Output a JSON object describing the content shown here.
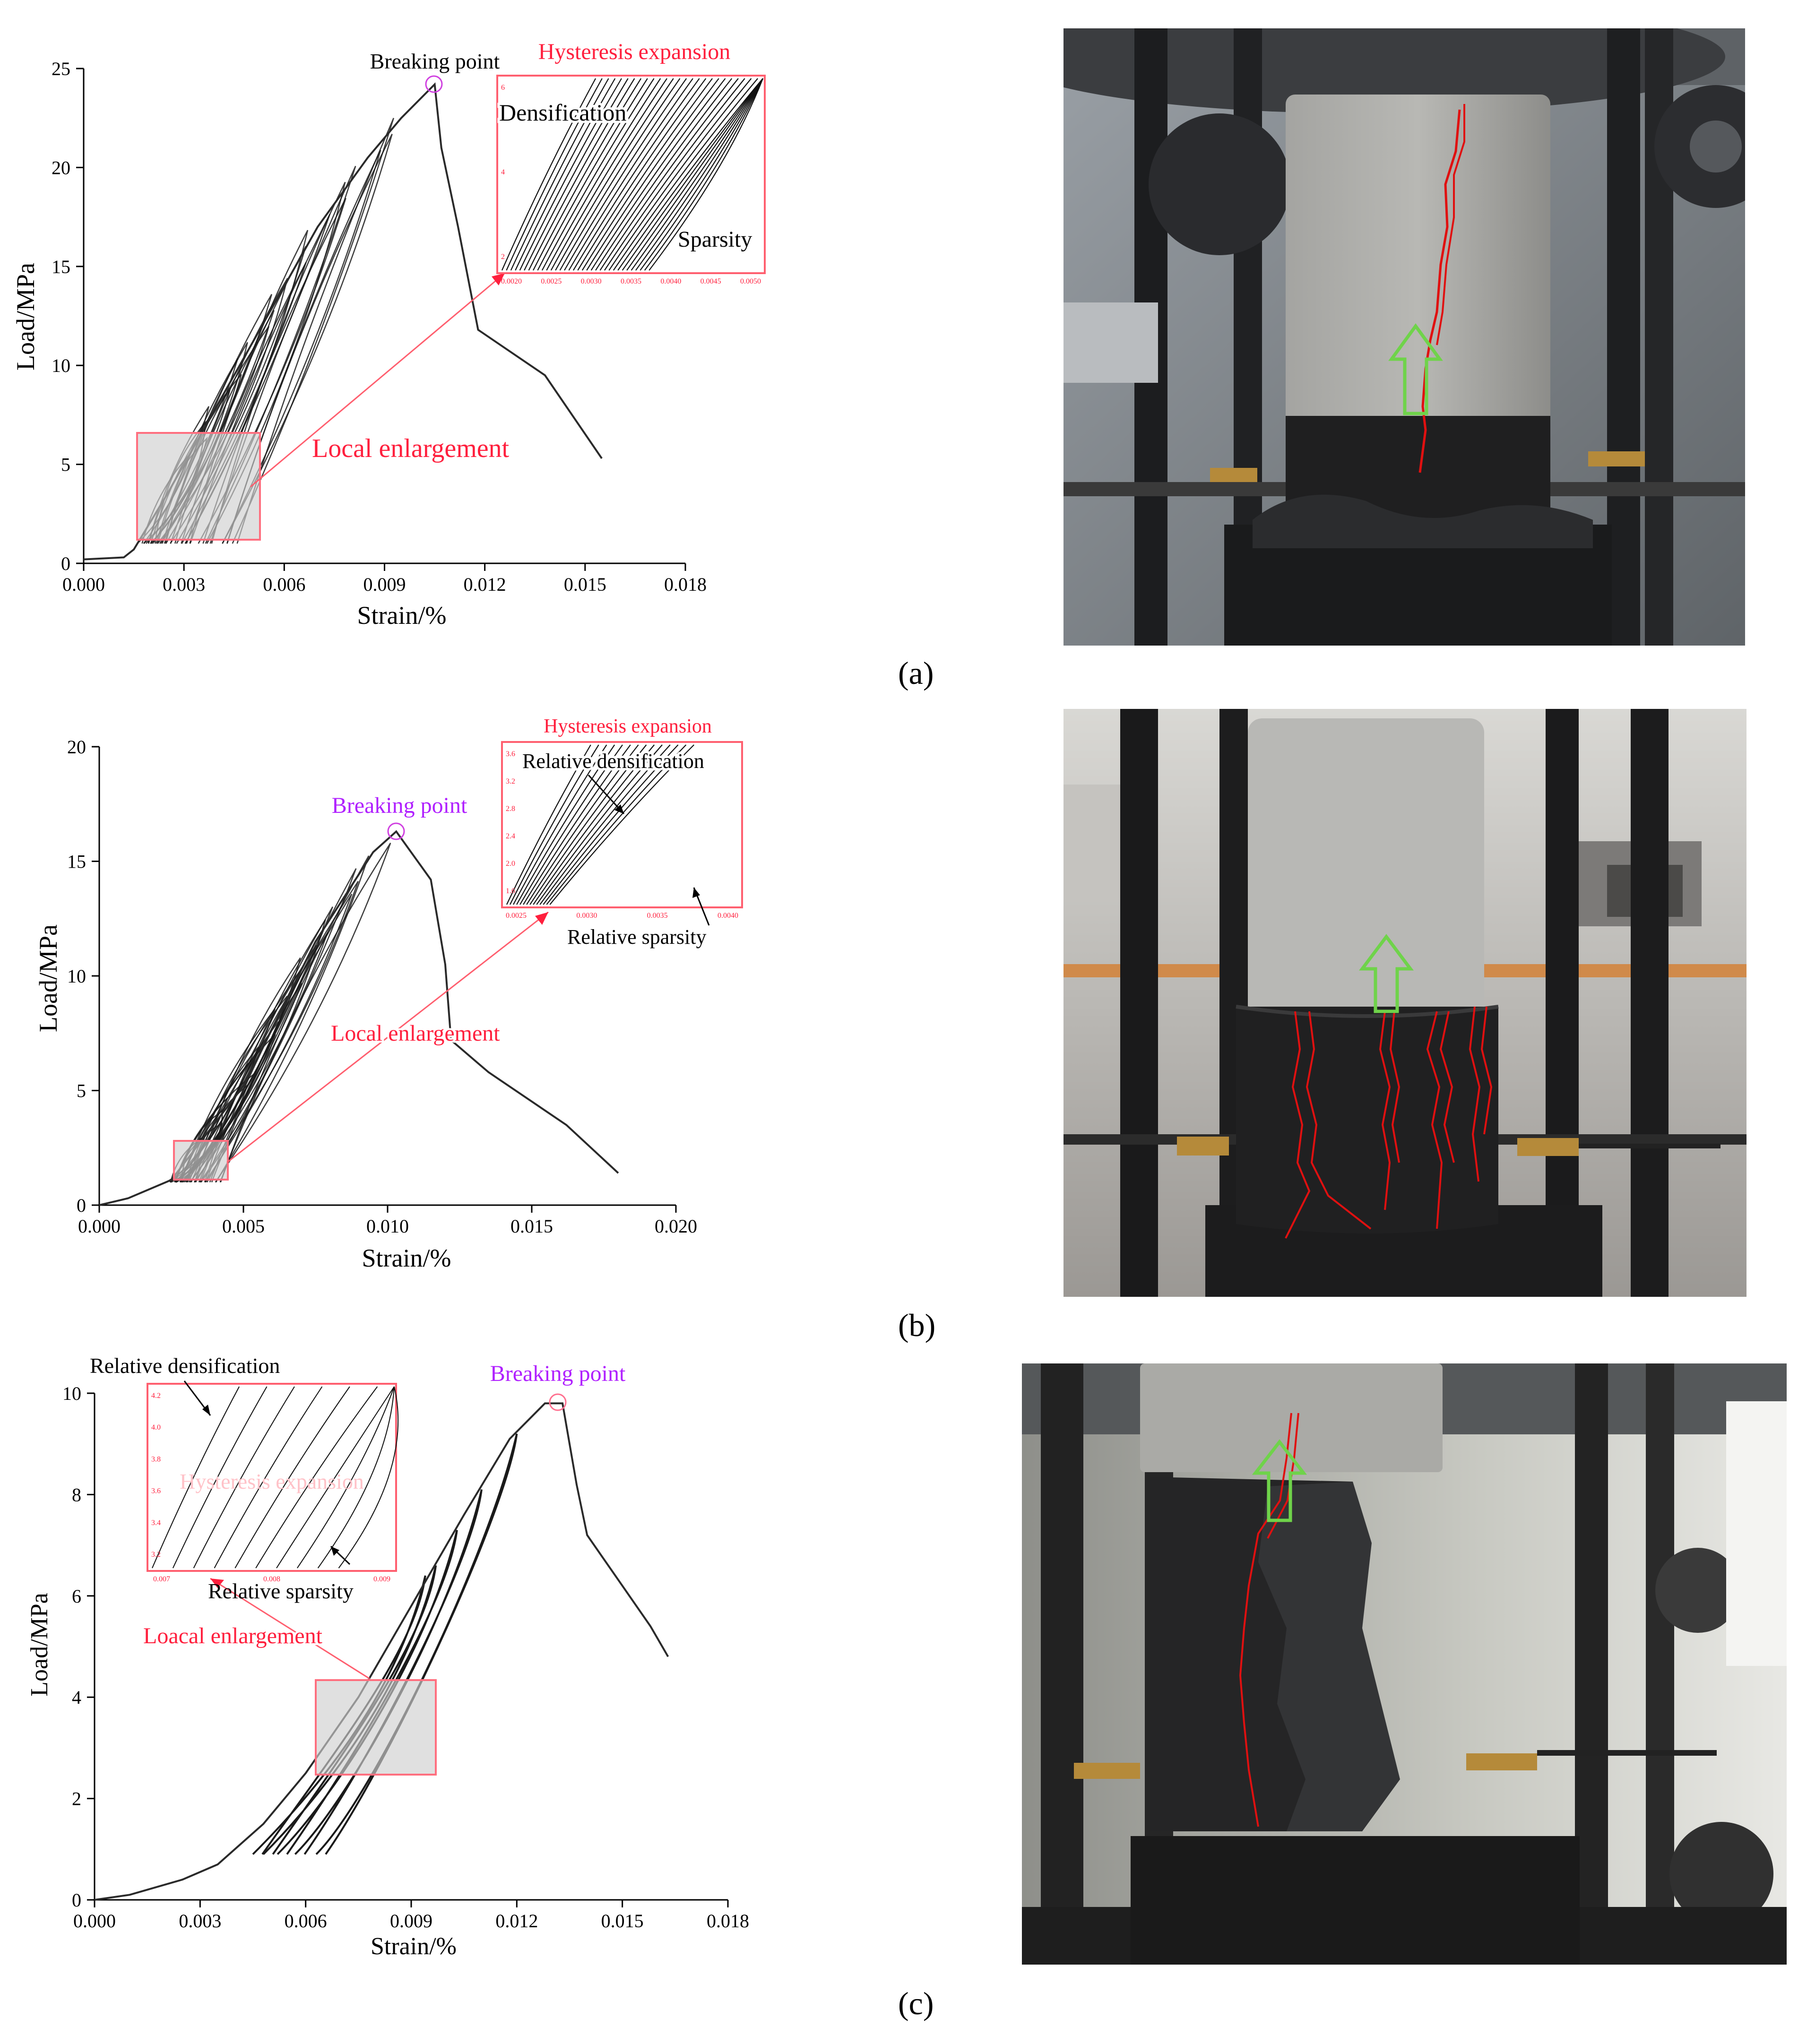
{
  "labels": {
    "a": "(a)",
    "b": "(b)",
    "c": "(c)"
  },
  "chart_data": [
    {
      "type": "line",
      "panel": "a",
      "xlabel": "Strain/%",
      "ylabel": "Load/MPa",
      "xlim": [
        0,
        0.018
      ],
      "ylim": [
        0,
        25
      ],
      "x_ticks": [
        "0.000",
        "0.003",
        "0.006",
        "0.009",
        "0.012",
        "0.015",
        "0.018"
      ],
      "y_ticks": [
        "0",
        "5",
        "10",
        "15",
        "20",
        "25"
      ],
      "annotations": {
        "breaking_point": "Breaking point",
        "local_enlargement": "Local enlargement",
        "inset_title": "Hysteresis expansion",
        "inset_note_1": "Densification",
        "inset_note_2": "Sparsity"
      },
      "inset_x_ticks": [
        "0.0020",
        "0.0025",
        "0.0030",
        "0.0035",
        "0.0040",
        "0.0045",
        "0.0050"
      ],
      "inset_y_ticks": [
        "2",
        "4",
        "6"
      ],
      "envelope": {
        "x": [
          0,
          0.0012,
          0.0015,
          0.0025,
          0.005,
          0.007,
          0.0085,
          0.0095,
          0.0105,
          0.0107,
          0.0112,
          0.0118,
          0.0138,
          0.0155
        ],
        "y": [
          0.2,
          0.3,
          0.7,
          3.5,
          11,
          17,
          20.5,
          22.5,
          24.2,
          21,
          17,
          11.8,
          9.5,
          5.3
        ]
      },
      "cycles": {
        "count": 22,
        "unload_level": 1.0,
        "peak_min": 5.5,
        "peak_max": 22.5
      }
    },
    {
      "type": "line",
      "panel": "b",
      "xlabel": "Strain/%",
      "ylabel": "Load/MPa",
      "xlim": [
        0,
        0.02
      ],
      "ylim": [
        0,
        20
      ],
      "x_ticks": [
        "0.000",
        "0.005",
        "0.010",
        "0.015",
        "0.020"
      ],
      "y_ticks": [
        "0",
        "5",
        "10",
        "15",
        "20"
      ],
      "annotations": {
        "breaking_point": "Breaking point",
        "local_enlargement": "Local enlargement",
        "inset_title": "Hysteresis expansion",
        "inset_note_1": "Relative densification",
        "inset_note_2": "Relative sparsity"
      },
      "inset_x_ticks": [
        "0.0025",
        "0.0030",
        "0.0035",
        "0.0040"
      ],
      "inset_y_ticks": [
        "1.6",
        "2.0",
        "2.4",
        "2.8",
        "3.2",
        "3.6"
      ],
      "envelope": {
        "x": [
          0,
          0.001,
          0.0025,
          0.005,
          0.0075,
          0.0095,
          0.0103,
          0.0115,
          0.012,
          0.0122,
          0.0135,
          0.0162,
          0.018
        ],
        "y": [
          0,
          0.3,
          1.1,
          5.2,
          11.5,
          15.4,
          16.3,
          14.2,
          10.5,
          7.2,
          5.8,
          3.5,
          1.4
        ]
      },
      "cycles": {
        "count": 24,
        "unload_level": 1.0,
        "peak_min": 3.0,
        "peak_max": 15.8
      }
    },
    {
      "type": "line",
      "panel": "c",
      "xlabel": "Strain/%",
      "ylabel": "Load/MPa",
      "xlim": [
        0,
        0.018
      ],
      "ylim": [
        0,
        10
      ],
      "x_ticks": [
        "0.000",
        "0.003",
        "0.006",
        "0.009",
        "0.012",
        "0.015",
        "0.018"
      ],
      "y_ticks": [
        "0",
        "2",
        "4",
        "6",
        "8",
        "10"
      ],
      "annotations": {
        "breaking_point": "Breaking point",
        "local_enlargement": "Loacal enlargement",
        "inset_title": "Hysteresis expansion",
        "inset_note_1": "Relative densification",
        "inset_note_2": "Relative  sparsity"
      },
      "inset_x_ticks": [
        "0.007",
        "0.008",
        "0.009"
      ],
      "inset_y_ticks": [
        "3.2",
        "3.4",
        "3.6",
        "3.8",
        "4.0",
        "4.2"
      ],
      "envelope": {
        "x": [
          0,
          0.001,
          0.0025,
          0.0035,
          0.0048,
          0.006,
          0.0075,
          0.009,
          0.0105,
          0.0118,
          0.0128,
          0.0133,
          0.0137,
          0.014,
          0.015,
          0.0158,
          0.0163
        ],
        "y": [
          0,
          0.1,
          0.4,
          0.7,
          1.5,
          2.5,
          4.0,
          5.8,
          7.6,
          9.1,
          9.8,
          9.8,
          8.2,
          7.2,
          6.2,
          5.4,
          4.8
        ]
      },
      "loops": [
        {
          "start": 0.0045,
          "peak_x": 0.0094,
          "peak_y": 6.4
        },
        {
          "start": 0.0048,
          "peak_x": 0.0097,
          "peak_y": 6.6
        },
        {
          "start": 0.0052,
          "peak_x": 0.0103,
          "peak_y": 7.3
        },
        {
          "start": 0.0057,
          "peak_x": 0.011,
          "peak_y": 8.1
        },
        {
          "start": 0.0063,
          "peak_x": 0.012,
          "peak_y": 9.2
        }
      ]
    }
  ],
  "colors": {
    "annotation_red": "#ff1f3d",
    "breaking_purple": "#b020ff",
    "crack_red": "#e01010",
    "arrow_green": "#6fd34a"
  }
}
